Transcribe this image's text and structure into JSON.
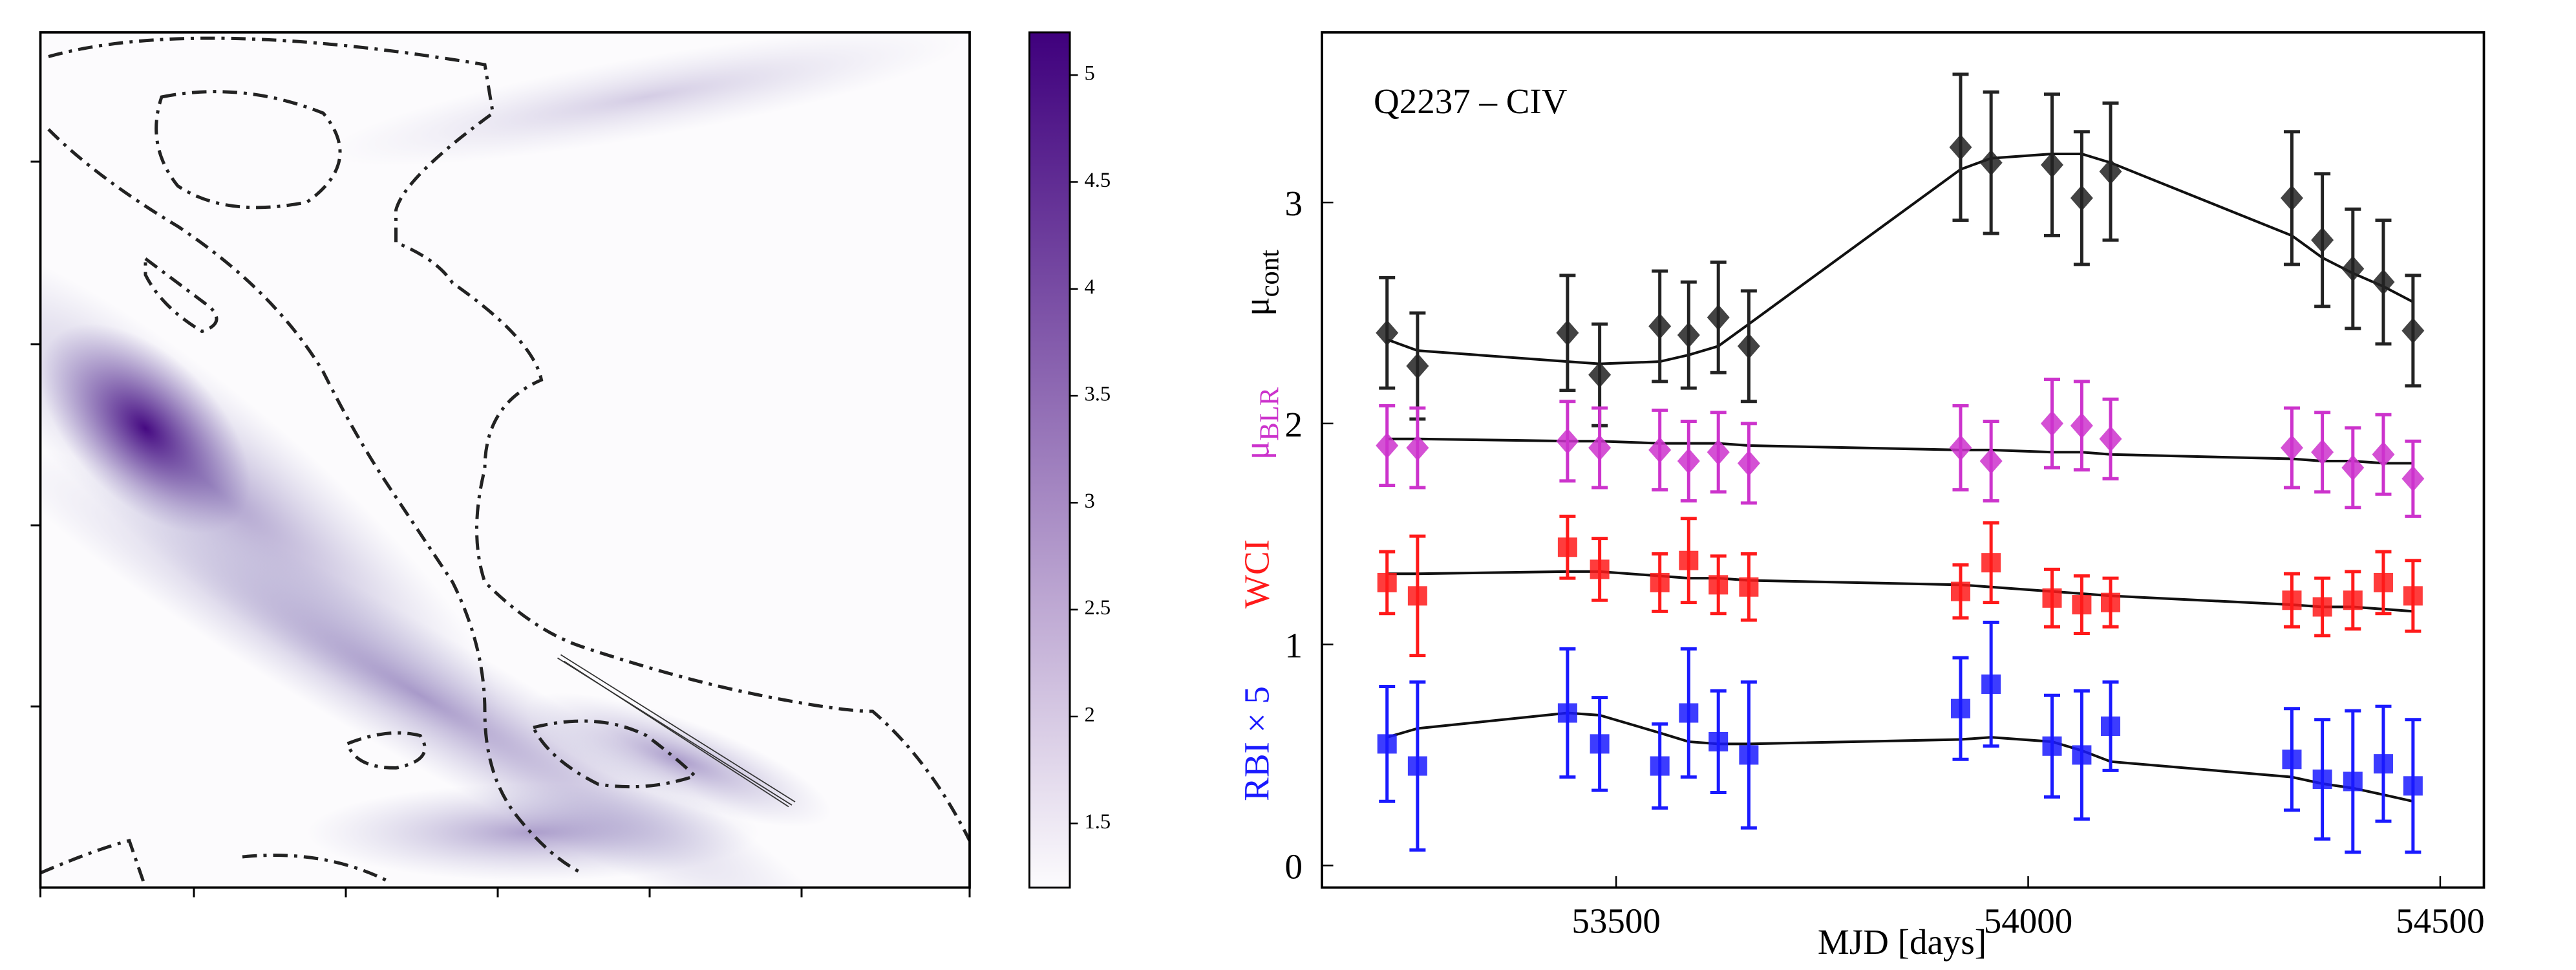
{
  "chart_data": [
    {
      "type": "heatmap",
      "colorbar": {
        "lim": [
          1.2,
          5.2
        ],
        "ticks": [
          1.5,
          2.0,
          2.5,
          3.0,
          3.5,
          4.0,
          4.5,
          5.0
        ],
        "colors": [
          "#fcfbfd",
          "#3f007d"
        ]
      }
    },
    {
      "type": "scatter",
      "annotation": "Q2237 – CIV",
      "xlabel": "MJD [days]",
      "ylabel_parts": [
        {
          "text": "RBI × 5",
          "color": "#1a1aff"
        },
        {
          "text": "WCI",
          "color": "#ff1a1a"
        },
        {
          "text": "μ",
          "sub": "BLR",
          "color": "#cc33cc"
        },
        {
          "text": "μ",
          "sub": "cont",
          "color": "#000000"
        }
      ],
      "xlim": [
        53143,
        54553
      ],
      "ylim": [
        -0.1,
        3.77
      ],
      "xticks": [
        53500,
        54000,
        54500
      ],
      "yticks": [
        0,
        1,
        2,
        3
      ],
      "x": [
        53222,
        53259,
        53441,
        53480,
        53553,
        53588,
        53624,
        53661,
        53918,
        53955,
        54029,
        54065,
        54100,
        54320,
        54357,
        54394,
        54431,
        54467
      ],
      "series": [
        {
          "color": "#222222",
          "marker": "diamond",
          "values": [
            2.41,
            2.26,
            2.41,
            2.22,
            2.44,
            2.4,
            2.48,
            2.35,
            3.25,
            3.18,
            3.17,
            3.02,
            3.14,
            3.02,
            2.83,
            2.7,
            2.64,
            2.42
          ],
          "errors": [
            0.25,
            0.24,
            0.26,
            0.23,
            0.25,
            0.24,
            0.25,
            0.25,
            0.33,
            0.32,
            0.32,
            0.3,
            0.31,
            0.3,
            0.3,
            0.27,
            0.28,
            0.25
          ],
          "model": [
            2.38,
            2.33,
            2.28,
            2.27,
            2.28,
            2.31,
            2.35,
            2.45,
            3.15,
            3.2,
            3.22,
            3.22,
            3.18,
            2.85,
            2.75,
            2.68,
            2.62,
            2.55
          ]
        },
        {
          "color": "#cc33cc",
          "marker": "diamond",
          "values": [
            1.9,
            1.89,
            1.92,
            1.89,
            1.88,
            1.83,
            1.87,
            1.82,
            1.89,
            1.83,
            2.0,
            1.99,
            1.93,
            1.89,
            1.87,
            1.8,
            1.86,
            1.75
          ],
          "errors": [
            0.18,
            0.18,
            0.18,
            0.18,
            0.18,
            0.18,
            0.18,
            0.18,
            0.19,
            0.18,
            0.2,
            0.2,
            0.18,
            0.18,
            0.18,
            0.18,
            0.18,
            0.17
          ],
          "model": [
            1.93,
            1.93,
            1.92,
            1.92,
            1.91,
            1.91,
            1.91,
            1.9,
            1.88,
            1.88,
            1.87,
            1.87,
            1.86,
            1.84,
            1.83,
            1.83,
            1.82,
            1.82
          ]
        },
        {
          "color": "#ff1a1a",
          "marker": "square",
          "values": [
            1.28,
            1.22,
            1.44,
            1.34,
            1.28,
            1.38,
            1.27,
            1.26,
            1.24,
            1.37,
            1.21,
            1.18,
            1.19,
            1.2,
            1.17,
            1.2,
            1.28,
            1.22
          ],
          "errors": [
            0.14,
            0.27,
            0.14,
            0.14,
            0.13,
            0.19,
            0.13,
            0.15,
            0.12,
            0.18,
            0.13,
            0.13,
            0.11,
            0.12,
            0.13,
            0.13,
            0.14,
            0.16
          ],
          "model": [
            1.32,
            1.32,
            1.33,
            1.33,
            1.31,
            1.3,
            1.3,
            1.29,
            1.27,
            1.26,
            1.24,
            1.23,
            1.22,
            1.18,
            1.17,
            1.17,
            1.16,
            1.15
          ]
        },
        {
          "color": "#1a1aff",
          "marker": "square",
          "values": [
            0.55,
            0.45,
            0.69,
            0.55,
            0.45,
            0.69,
            0.56,
            0.5,
            0.71,
            0.82,
            0.54,
            0.5,
            0.63,
            0.48,
            0.39,
            0.38,
            0.46,
            0.36
          ],
          "errors": [
            0.26,
            0.38,
            0.29,
            0.21,
            0.19,
            0.29,
            0.23,
            0.33,
            0.23,
            0.28,
            0.23,
            0.29,
            0.2,
            0.23,
            0.27,
            0.32,
            0.26,
            0.3
          ],
          "model": [
            0.58,
            0.62,
            0.69,
            0.68,
            0.6,
            0.56,
            0.55,
            0.55,
            0.57,
            0.58,
            0.56,
            0.52,
            0.47,
            0.4,
            0.37,
            0.35,
            0.32,
            0.29
          ]
        }
      ]
    }
  ]
}
